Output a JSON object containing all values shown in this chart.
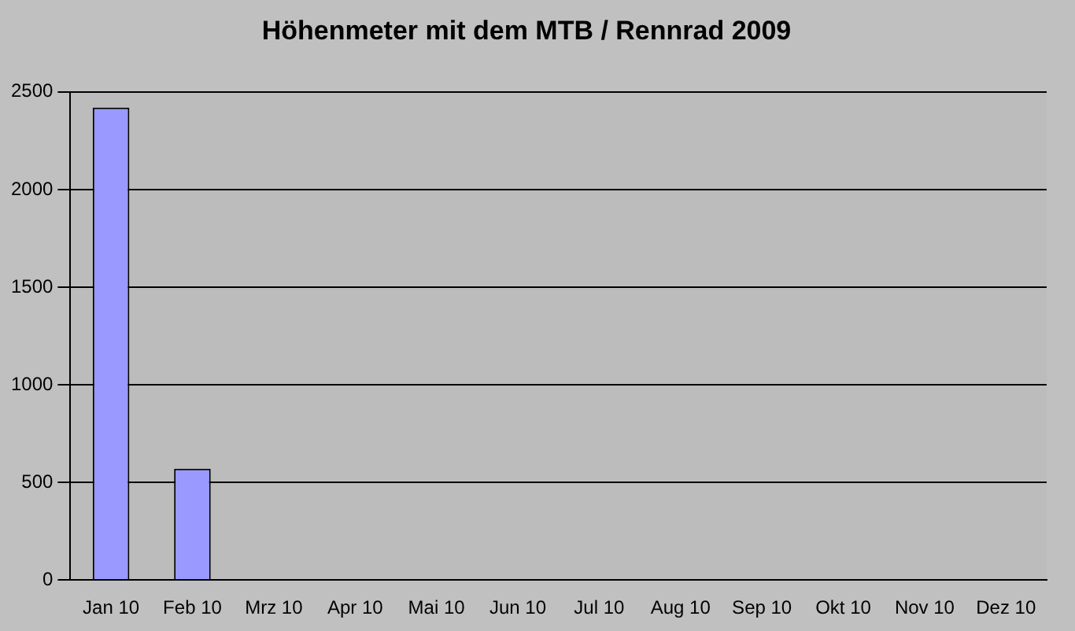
{
  "chart_data": {
    "type": "bar",
    "title": "Höhenmeter mit dem MTB / Rennrad 2009",
    "categories": [
      "Jan 10",
      "Feb 10",
      "Mrz 10",
      "Apr 10",
      "Mai 10",
      "Jun 10",
      "Jul 10",
      "Aug 10",
      "Sep 10",
      "Okt 10",
      "Nov 10",
      "Dez 10"
    ],
    "values": [
      2420,
      570,
      0,
      0,
      0,
      0,
      0,
      0,
      0,
      0,
      0,
      0
    ],
    "color": "#9999ff",
    "ylim": [
      0,
      2500
    ],
    "yticks": [
      0,
      500,
      1000,
      1500,
      2000,
      2500
    ],
    "grid": "y",
    "legend": false
  }
}
